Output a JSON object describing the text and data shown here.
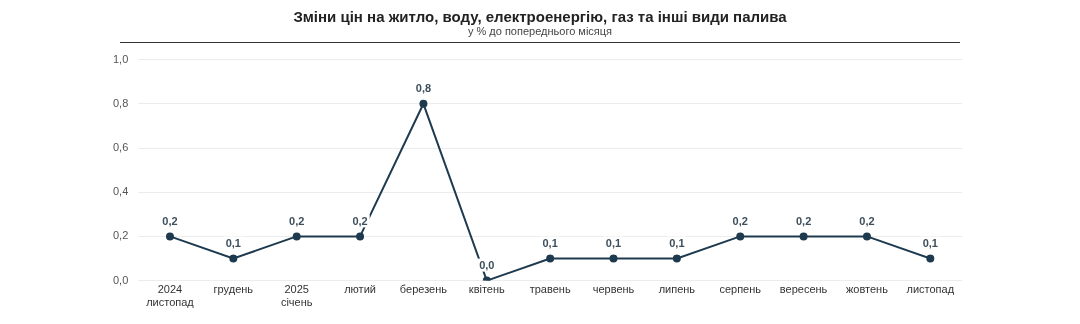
{
  "chart_data": {
    "type": "line",
    "title": "Зміни цін на житло, воду, електроенергію, газ та інші види палива",
    "subtitle": "у % до попереднього місяця",
    "categories": [
      "2024 листопад",
      "грудень",
      "2025 січень",
      "лютий",
      "березень",
      "квітень",
      "травень",
      "червень",
      "липень",
      "серпень",
      "вересень",
      "жовтень",
      "листопад"
    ],
    "series": [
      {
        "color": "#1e3a4f",
        "values": [
          0.2,
          0.1,
          0.2,
          0.2,
          0.8,
          0.0,
          0.1,
          0.1,
          0.1,
          0.2,
          0.2,
          0.2,
          0.1
        ],
        "value_labels": [
          "0,2",
          "0,1",
          "0,2",
          "0,2",
          "0,8",
          "0,0",
          "0,1",
          "0,1",
          "0,1",
          "0,2",
          "0,2",
          "0,2",
          "0,1"
        ]
      }
    ],
    "ylim": [
      0,
      1
    ],
    "yticks": [
      {
        "value": 0,
        "label": "0,0"
      },
      {
        "value": 0.2,
        "label": "0,2"
      },
      {
        "value": 0.4,
        "label": "0,4"
      },
      {
        "value": 0.6,
        "label": "0,6"
      },
      {
        "value": 0.8,
        "label": "0,8"
      },
      {
        "value": 1,
        "label": "1,0"
      }
    ],
    "grid": "y",
    "legend": false,
    "marker": "circle",
    "line_style": "solid"
  }
}
